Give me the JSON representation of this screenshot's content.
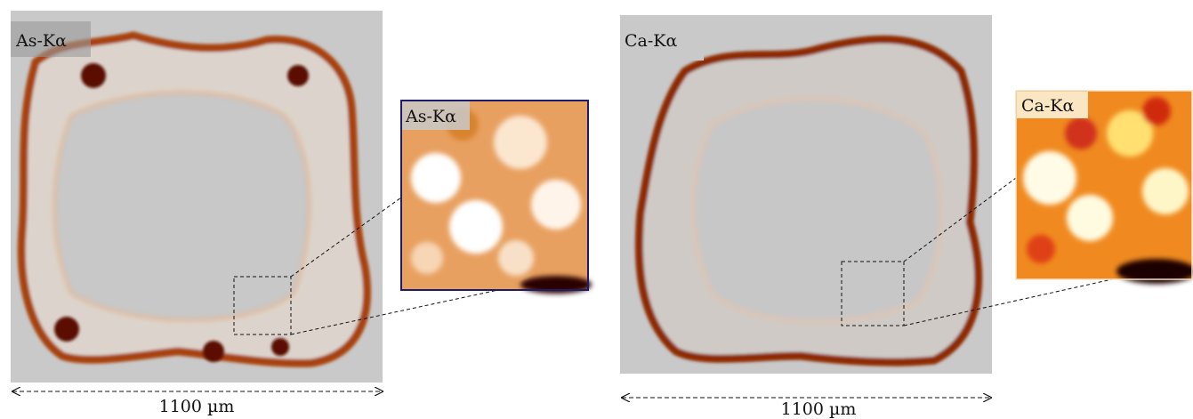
{
  "panels": [
    {
      "label": "As-Kα",
      "inset_label": "As-Kα",
      "scale_label": "1100 µm"
    },
    {
      "label": "Ca-Kα",
      "inset_label": "Ca-Kα",
      "scale_label": "1100 µm"
    }
  ]
}
